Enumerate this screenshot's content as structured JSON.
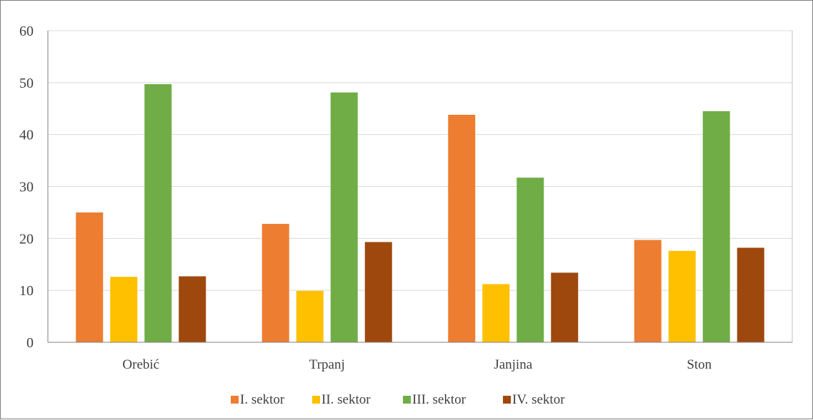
{
  "chart_data": {
    "type": "bar",
    "categories": [
      "Orebić",
      "Trpanj",
      "Janjina",
      "Ston"
    ],
    "series": [
      {
        "name": "I. sektor",
        "color": "#ED7D31",
        "values": [
          25,
          22.8,
          43.8,
          19.7
        ]
      },
      {
        "name": "II. sektor",
        "color": "#FFC000",
        "values": [
          12.6,
          9.9,
          11.2,
          17.6
        ]
      },
      {
        "name": "III. sektor",
        "color": "#70AD47",
        "values": [
          49.7,
          48.1,
          31.7,
          44.5
        ]
      },
      {
        "name": "IV. sektor",
        "color": "#9E480E",
        "values": [
          12.7,
          19.3,
          13.4,
          18.2
        ]
      }
    ],
    "yticks": [
      "0",
      "10",
      "20",
      "30",
      "40",
      "50",
      "60"
    ],
    "ylim": [
      0,
      60
    ],
    "grid": true,
    "legend": "bottom"
  }
}
